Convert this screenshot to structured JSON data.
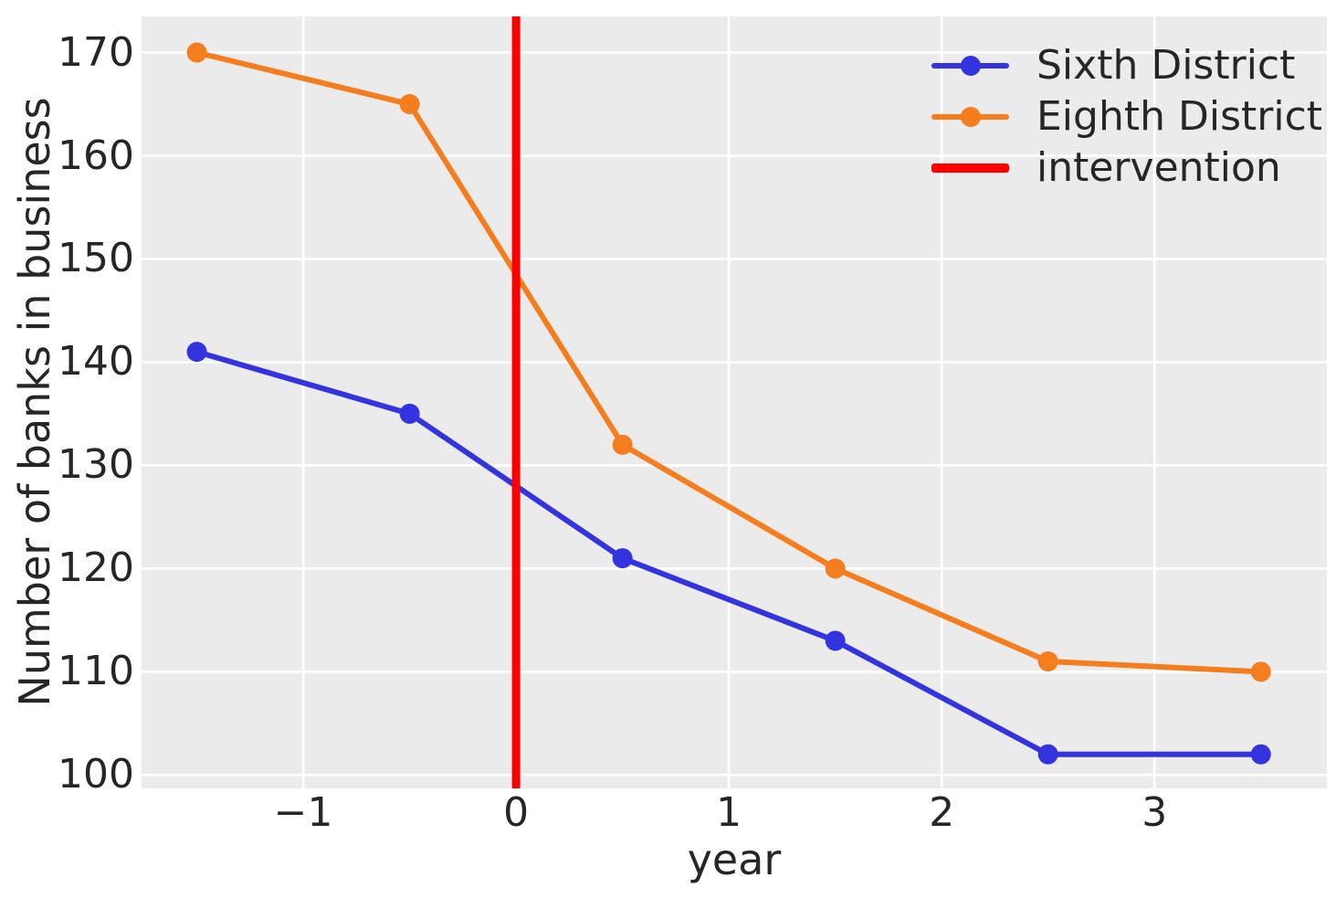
{
  "figure": {
    "background": "#ffffff",
    "plot_background": "#ebebeb",
    "grid_color": "#ffffff",
    "text_color": "#262626"
  },
  "chart_data": {
    "type": "line",
    "title": "",
    "xlabel": "year",
    "ylabel": "Number of banks in business",
    "xlim": [
      -1.76,
      3.81
    ],
    "ylim": [
      98.7,
      173.5
    ],
    "xticks": [
      -1,
      0,
      1,
      2,
      3
    ],
    "yticks": [
      100,
      110,
      120,
      130,
      140,
      150,
      160,
      170
    ],
    "grid": true,
    "x": [
      -1.5,
      -0.5,
      0.5,
      1.5,
      2.5,
      3.5
    ],
    "series": [
      {
        "name": "Sixth District",
        "color": "#3333e0",
        "marker": "circle",
        "values": [
          141,
          135,
          121,
          113,
          102,
          102
        ]
      },
      {
        "name": "Eighth District",
        "color": "#f67d1d",
        "marker": "circle",
        "values": [
          170,
          165,
          132,
          120,
          111,
          110
        ]
      }
    ],
    "vline": {
      "label": "intervention",
      "x": 0,
      "color": "#ff0000"
    },
    "legend": {
      "position": "upper right",
      "frame": false
    }
  }
}
